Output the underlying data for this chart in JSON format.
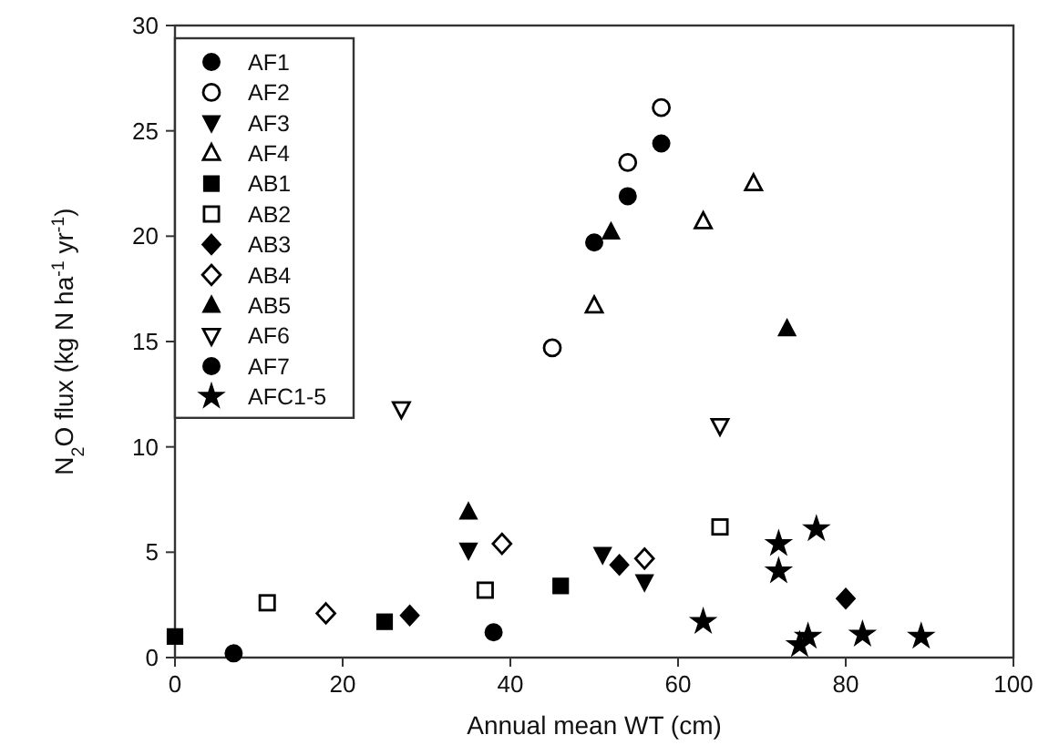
{
  "chart_data": {
    "type": "scatter",
    "xlabel": "Annual mean WT (cm)",
    "ylabel": "N$_{2}$O flux (kg N ha$^{-1}$ yr$^{-1}$)",
    "xlim": [
      0,
      100
    ],
    "xticks": [
      0,
      20,
      40,
      60,
      80,
      100
    ],
    "ylim": [
      0,
      30
    ],
    "yticks": [
      0,
      5,
      10,
      15,
      20,
      25,
      30
    ],
    "grid": false,
    "legend": "top left",
    "series": [
      {
        "name": "AF1",
        "color": "#000000",
        "marker": "circle",
        "x": [
          50,
          54,
          58
        ],
        "values": [
          19.7,
          21.9,
          24.4
        ]
      },
      {
        "name": "AF2",
        "color": "#000000",
        "marker": "circle-open",
        "x": [
          45,
          54,
          58
        ],
        "values": [
          14.7,
          23.5,
          26.1
        ]
      },
      {
        "name": "AF3",
        "color": "#000000",
        "marker": "triangle-down",
        "x": [
          35,
          51,
          56
        ],
        "values": [
          5.1,
          4.9,
          3.6
        ]
      },
      {
        "name": "AF4",
        "color": "#000000",
        "marker": "triangle-open",
        "x": [
          50,
          63,
          69
        ],
        "values": [
          16.7,
          20.7,
          22.5
        ]
      },
      {
        "name": "AB1",
        "color": "#000000",
        "marker": "square",
        "x": [
          0,
          25,
          46
        ],
        "values": [
          1.0,
          1.7,
          3.4
        ]
      },
      {
        "name": "AB2",
        "color": "#000000",
        "marker": "square-open",
        "x": [
          11,
          37,
          65
        ],
        "values": [
          2.6,
          3.2,
          6.2
        ]
      },
      {
        "name": "AB3",
        "color": "#000000",
        "marker": "diamond",
        "x": [
          28,
          53,
          80
        ],
        "values": [
          2.0,
          4.4,
          2.8
        ]
      },
      {
        "name": "AB4",
        "color": "#000000",
        "marker": "diamond-open",
        "x": [
          18,
          39,
          56
        ],
        "values": [
          2.1,
          5.4,
          4.7
        ]
      },
      {
        "name": "AB5",
        "color": "#000000",
        "marker": "triangle",
        "x": [
          35,
          52,
          73
        ],
        "values": [
          6.9,
          20.2,
          15.6
        ]
      },
      {
        "name": "AF6",
        "color": "#000000",
        "marker": "triangle-down-open",
        "x": [
          27,
          65
        ],
        "values": [
          11.8,
          11.0
        ]
      },
      {
        "name": "AF7",
        "color": "#000000",
        "marker": "circle",
        "x": [
          7,
          38
        ],
        "values": [
          0.2,
          1.2
        ]
      },
      {
        "name": "AFC1-5",
        "color": "#000000",
        "marker": "star",
        "x": [
          63,
          72,
          72,
          76.5,
          74.5,
          75.5,
          82,
          89
        ],
        "values": [
          1.7,
          5.4,
          4.1,
          6.1,
          0.6,
          1.0,
          1.1,
          1.0
        ]
      }
    ]
  }
}
